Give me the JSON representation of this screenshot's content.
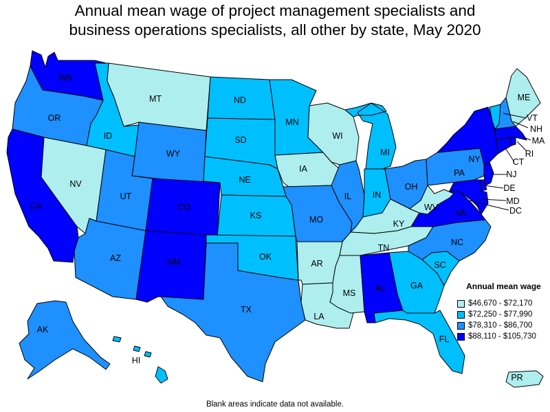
{
  "title_line1": "Annual mean wage of project management specialists and",
  "title_line2": "business operations specialists, all other by state, May 2020",
  "footnote": "Blank areas indicate data not available.",
  "colors": {
    "c1": "#aeeeee",
    "c2": "#00bfff",
    "c3": "#1e90ff",
    "c4": "#0000ff"
  },
  "legend": {
    "title": "Annual mean wage",
    "items": [
      {
        "range": "$46,670 - $72,170",
        "color_class": "c1"
      },
      {
        "range": "$72,250 - $77,990",
        "color_class": "c2"
      },
      {
        "range": "$78,310 - $86,700",
        "color_class": "c3"
      },
      {
        "range": "$88,110 - $105,730",
        "color_class": "c4"
      }
    ]
  },
  "states": [
    {
      "abbr": "WA",
      "class": "c4"
    },
    {
      "abbr": "OR",
      "class": "c3"
    },
    {
      "abbr": "CA",
      "class": "c4"
    },
    {
      "abbr": "NV",
      "class": "c1"
    },
    {
      "abbr": "ID",
      "class": "c2"
    },
    {
      "abbr": "MT",
      "class": "c1"
    },
    {
      "abbr": "WY",
      "class": "c3"
    },
    {
      "abbr": "UT",
      "class": "c3"
    },
    {
      "abbr": "AZ",
      "class": "c3"
    },
    {
      "abbr": "CO",
      "class": "c4"
    },
    {
      "abbr": "NM",
      "class": "c4"
    },
    {
      "abbr": "ND",
      "class": "c2"
    },
    {
      "abbr": "SD",
      "class": "c2"
    },
    {
      "abbr": "NE",
      "class": "c2"
    },
    {
      "abbr": "KS",
      "class": "c2"
    },
    {
      "abbr": "OK",
      "class": "c2"
    },
    {
      "abbr": "TX",
      "class": "c3"
    },
    {
      "abbr": "MN",
      "class": "c2"
    },
    {
      "abbr": "IA",
      "class": "c1"
    },
    {
      "abbr": "MO",
      "class": "c3"
    },
    {
      "abbr": "AR",
      "class": "c1"
    },
    {
      "abbr": "LA",
      "class": "c1"
    },
    {
      "abbr": "WI",
      "class": "c1"
    },
    {
      "abbr": "IL",
      "class": "c3"
    },
    {
      "abbr": "MI",
      "class": "c2"
    },
    {
      "abbr": "IN",
      "class": "c2"
    },
    {
      "abbr": "OH",
      "class": "c3"
    },
    {
      "abbr": "KY",
      "class": "c1"
    },
    {
      "abbr": "TN",
      "class": "c1"
    },
    {
      "abbr": "MS",
      "class": "c1"
    },
    {
      "abbr": "AL",
      "class": "c4"
    },
    {
      "abbr": "GA",
      "class": "c2"
    },
    {
      "abbr": "FL",
      "class": "c2"
    },
    {
      "abbr": "SC",
      "class": "c2"
    },
    {
      "abbr": "NC",
      "class": "c3"
    },
    {
      "abbr": "VA",
      "class": "c4"
    },
    {
      "abbr": "WV",
      "class": "c1"
    },
    {
      "abbr": "PA",
      "class": "c3"
    },
    {
      "abbr": "NY",
      "class": "c4"
    },
    {
      "abbr": "NJ",
      "class": "c4"
    },
    {
      "abbr": "DE",
      "class": "c4"
    },
    {
      "abbr": "MD",
      "class": "c4"
    },
    {
      "abbr": "DC",
      "class": "c4"
    },
    {
      "abbr": "CT",
      "class": "c4"
    },
    {
      "abbr": "RI",
      "class": "c4"
    },
    {
      "abbr": "MA",
      "class": "c4"
    },
    {
      "abbr": "VT",
      "class": "c2"
    },
    {
      "abbr": "NH",
      "class": "c3"
    },
    {
      "abbr": "ME",
      "class": "c1"
    },
    {
      "abbr": "AK",
      "class": "c3"
    },
    {
      "abbr": "HI",
      "class": "c2"
    },
    {
      "abbr": "PR",
      "class": "c1"
    }
  ]
}
